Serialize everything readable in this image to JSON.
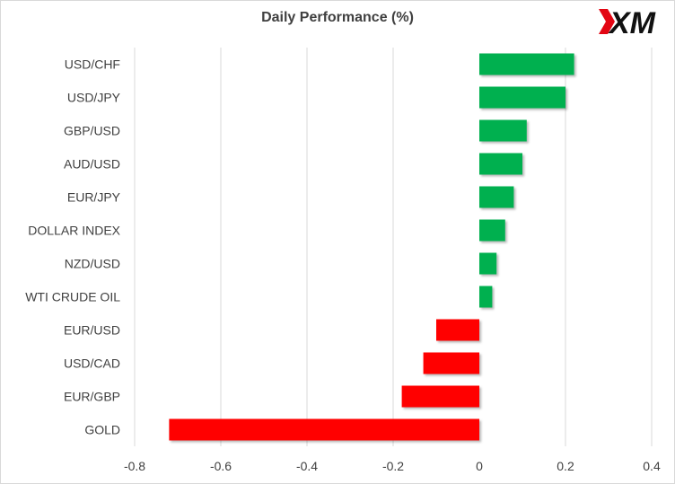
{
  "brand": {
    "logo_text": "XM",
    "logo_color": "#111111",
    "logo_accent": "#e30613"
  },
  "chart_data": {
    "type": "bar",
    "orientation": "horizontal",
    "title": "Daily Performance (%)",
    "categories": [
      "USD/CHF",
      "USD/JPY",
      "GBP/USD",
      "AUD/USD",
      "EUR/JPY",
      "DOLLAR INDEX",
      "NZD/USD",
      "WTI CRUDE OIL",
      "EUR/USD",
      "USD/CAD",
      "EUR/GBP",
      "GOLD"
    ],
    "values": [
      0.22,
      0.2,
      0.11,
      0.1,
      0.08,
      0.06,
      0.04,
      0.03,
      -0.1,
      -0.13,
      -0.18,
      -0.72
    ],
    "xlim": [
      -0.8,
      0.4
    ],
    "xticks": [
      -0.8,
      -0.6,
      -0.4,
      -0.2,
      0,
      0.2,
      0.4
    ],
    "xtick_labels": [
      "-0.8",
      "-0.6",
      "-0.4",
      "-0.2",
      "0",
      "0.2",
      "0.4"
    ],
    "grid": "vertical",
    "colors": {
      "positive": "#00b050",
      "negative": "#ff0000",
      "grid": "#d9d9d9",
      "text": "#404040"
    }
  }
}
